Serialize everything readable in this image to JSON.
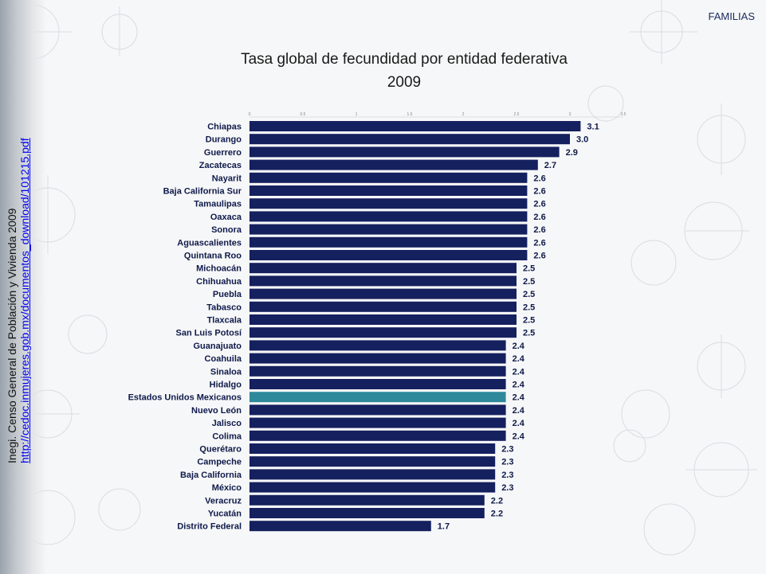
{
  "header": {
    "section": "FAMILIAS"
  },
  "source": {
    "text": "Inegi. Censo General de Población y Vivienda 2009",
    "link": "http://cedoc.inmujeres.gob.mx/documentos_download/101215.pdf"
  },
  "colors": {
    "bar": "#15205e",
    "highlight": "#2e8a9a",
    "text": "#0f1a4a"
  },
  "chart_data": {
    "type": "bar",
    "orientation": "horizontal",
    "title": "Tasa global de fecundidad por entidad federativa",
    "subtitle": "2009",
    "xlim": [
      0,
      3.5
    ],
    "ticks": [
      "0",
      "0.5",
      "1",
      "1.5",
      "2",
      "2.5",
      "3",
      "3.5"
    ],
    "grid": false,
    "highlight": "Estados Unidos Mexicanos",
    "categories": [
      "Chiapas",
      "Durango",
      "Guerrero",
      "Zacatecas",
      "Nayarit",
      "Baja California Sur",
      "Tamaulipas",
      "Oaxaca",
      "Sonora",
      "Aguascalientes",
      "Quintana Roo",
      "Michoacán",
      "Chihuahua",
      "Puebla",
      "Tabasco",
      "Tlaxcala",
      "San Luis Potosí",
      "Guanajuato",
      "Coahuila",
      "Sinaloa",
      "Hidalgo",
      "Estados Unidos Mexicanos",
      "Nuevo León",
      "Jalisco",
      "Colima",
      "Querétaro",
      "Campeche",
      "Baja California",
      "México",
      "Veracruz",
      "Yucatán",
      "Distrito Federal"
    ],
    "values": [
      3.1,
      3.0,
      2.9,
      2.7,
      2.6,
      2.6,
      2.6,
      2.6,
      2.6,
      2.6,
      2.6,
      2.5,
      2.5,
      2.5,
      2.5,
      2.5,
      2.5,
      2.4,
      2.4,
      2.4,
      2.4,
      2.4,
      2.4,
      2.4,
      2.4,
      2.3,
      2.3,
      2.3,
      2.3,
      2.2,
      2.2,
      1.7
    ],
    "labels": [
      "3.1",
      "3.0",
      "2.9",
      "2.7",
      "2.6",
      "2.6",
      "2.6",
      "2.6",
      "2.6",
      "2.6",
      "2.6",
      "2.5",
      "2.5",
      "2.5",
      "2.5",
      "2.5",
      "2.5",
      "2.4",
      "2.4",
      "2.4",
      "2.4",
      "2.4",
      "2.4",
      "2.4",
      "2.4",
      "2.3",
      "2.3",
      "2.3",
      "2.3",
      "2.2",
      "2.2",
      "1.7"
    ]
  }
}
